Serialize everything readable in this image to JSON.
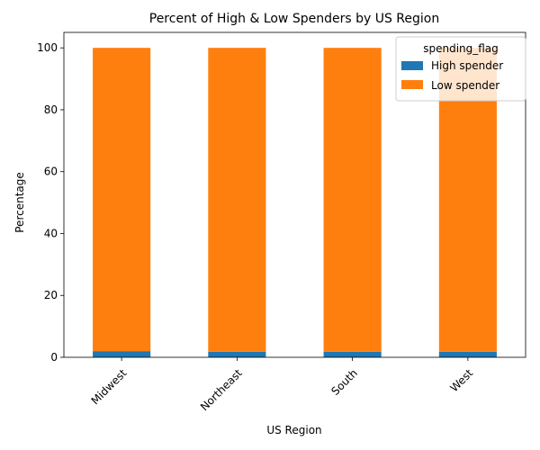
{
  "chart_data": {
    "type": "bar",
    "stacked": true,
    "title": "Percent of High & Low Spenders by US Region",
    "xlabel": "US Region",
    "ylabel": "Percentage",
    "categories": [
      "Midwest",
      "Northeast",
      "South",
      "West"
    ],
    "series": [
      {
        "name": "High spender",
        "values": [
          2.0,
          1.8,
          1.8,
          1.8
        ],
        "color": "#1f77b4"
      },
      {
        "name": "Low spender",
        "values": [
          98.0,
          98.2,
          98.2,
          98.2
        ],
        "color": "#ff7f0e"
      }
    ],
    "ylim": [
      0,
      105
    ],
    "yticks": [
      "0",
      "20",
      "40",
      "60",
      "80",
      "100"
    ],
    "legend": {
      "title": "spending_flag",
      "placement": "top-right"
    },
    "grid": false
  }
}
